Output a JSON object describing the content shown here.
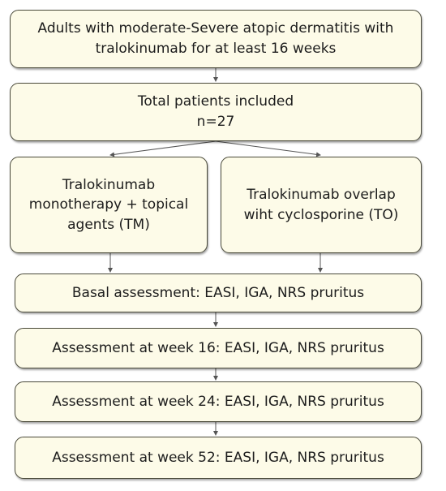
{
  "diagram": {
    "steps": {
      "population": "Adults with moderate-Severe atopic dermatitis with\ntralokinumab for at least 16 weeks",
      "total": "Total patients included\nn=27",
      "arm_tm": "Tralokinumab\nmonotherapy + topical\nagents  (TM)",
      "arm_to": "Tralokinumab overlap\nwiht cyclosporine (TO)",
      "basal": "Basal assessment: EASI, IGA, NRS pruritus",
      "week16": "Assessment at week 16: EASI, IGA, NRS pruritus",
      "week24": "Assessment at week 24: EASI, IGA, NRS pruritus",
      "week52": "Assessment at week 52: EASI, IGA, NRS pruritus"
    },
    "colors": {
      "box_fill": "#fdfbe8",
      "box_border": "#4a4a3a",
      "connector": "#555555"
    }
  }
}
